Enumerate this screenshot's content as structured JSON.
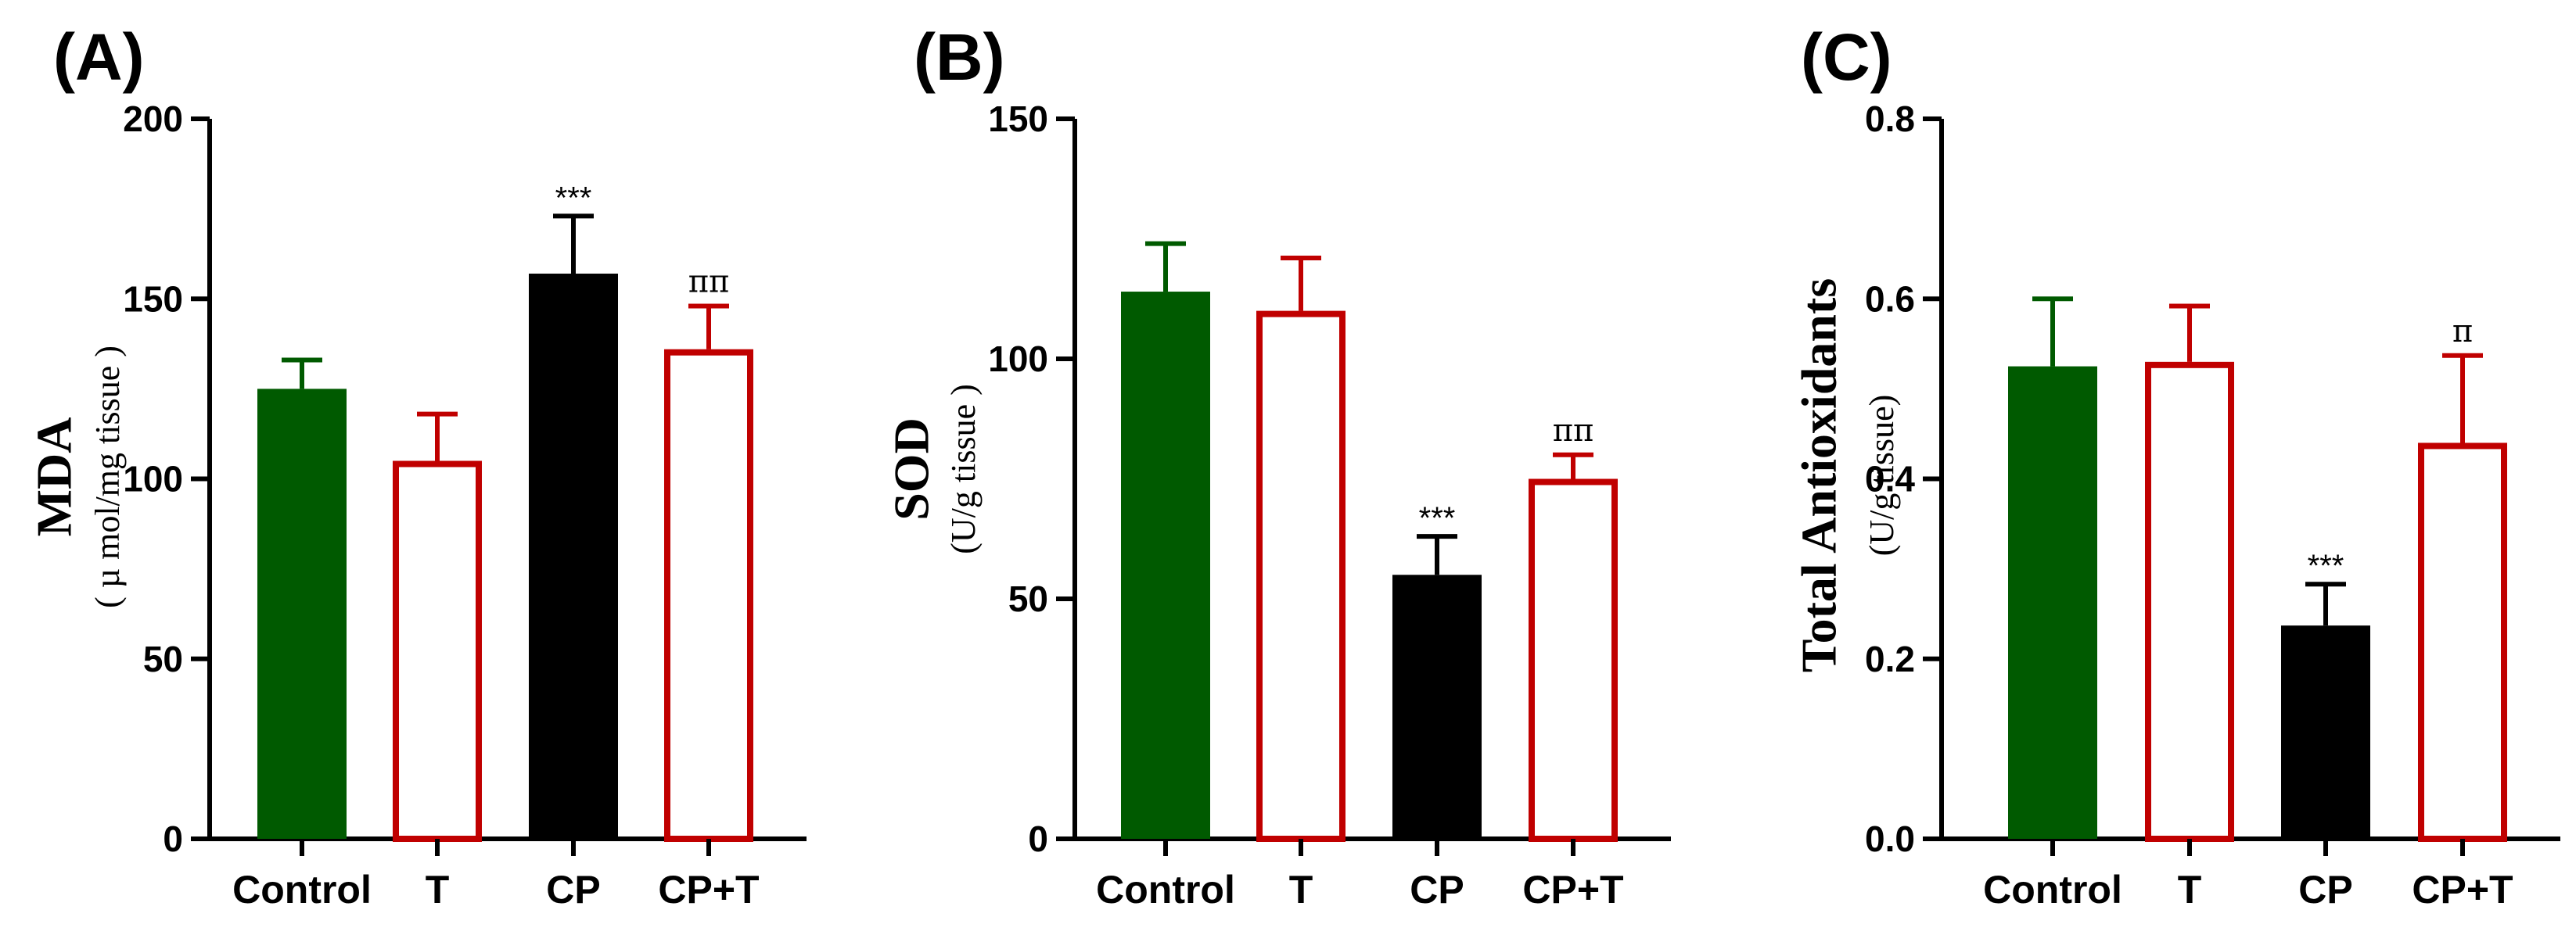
{
  "colors": {
    "control": "#005a00",
    "t": "#c00000",
    "cp": "#000000",
    "cpt": "#c00000",
    "axis": "#000000"
  },
  "chart_data": [
    {
      "type": "bar",
      "panel_label": "(A)",
      "ylabel": "MDA",
      "ylabel_sub": "( µ mol/mg tissue )",
      "categories": [
        "Control",
        "T",
        "CP",
        "CP+T"
      ],
      "values": [
        125,
        105,
        157,
        136
      ],
      "errors": [
        8,
        13,
        16,
        12
      ],
      "annotations": [
        "",
        "",
        "***",
        "ππ"
      ],
      "fill": [
        "solid",
        "outline",
        "solid",
        "outline"
      ],
      "ylim": [
        0,
        200
      ],
      "yticks": [
        0,
        50,
        100,
        150,
        200
      ],
      "ytick_labels": [
        "0",
        "50",
        "100",
        "150",
        "200"
      ]
    },
    {
      "type": "bar",
      "panel_label": "(B)",
      "ylabel": "SOD",
      "ylabel_sub": "(U/g tissue )",
      "categories": [
        "Control",
        "T",
        "CP",
        "CP+T"
      ],
      "values": [
        114,
        110,
        55,
        75
      ],
      "errors": [
        10,
        11,
        8,
        5
      ],
      "annotations": [
        "",
        "",
        "***",
        "ππ"
      ],
      "fill": [
        "solid",
        "outline",
        "solid",
        "outline"
      ],
      "ylim": [
        0,
        150
      ],
      "yticks": [
        0,
        50,
        100,
        150
      ],
      "ytick_labels": [
        "0",
        "50",
        "100",
        "150"
      ]
    },
    {
      "type": "bar",
      "panel_label": "(C)",
      "ylabel": "Total Antioxidants",
      "ylabel_sub": "(U/g tissue)",
      "categories": [
        "Control",
        "T",
        "CP",
        "CP+T"
      ],
      "values": [
        0.525,
        0.53,
        0.237,
        0.44
      ],
      "errors": [
        0.075,
        0.062,
        0.046,
        0.097
      ],
      "annotations": [
        "",
        "",
        "***",
        "π"
      ],
      "fill": [
        "solid",
        "outline",
        "solid",
        "outline"
      ],
      "ylim": [
        0,
        0.8
      ],
      "yticks": [
        0,
        0.2,
        0.4,
        0.6,
        0.8
      ],
      "ytick_labels": [
        "0.0",
        "0.2",
        "0.4",
        "0.6",
        "0.8"
      ]
    }
  ]
}
